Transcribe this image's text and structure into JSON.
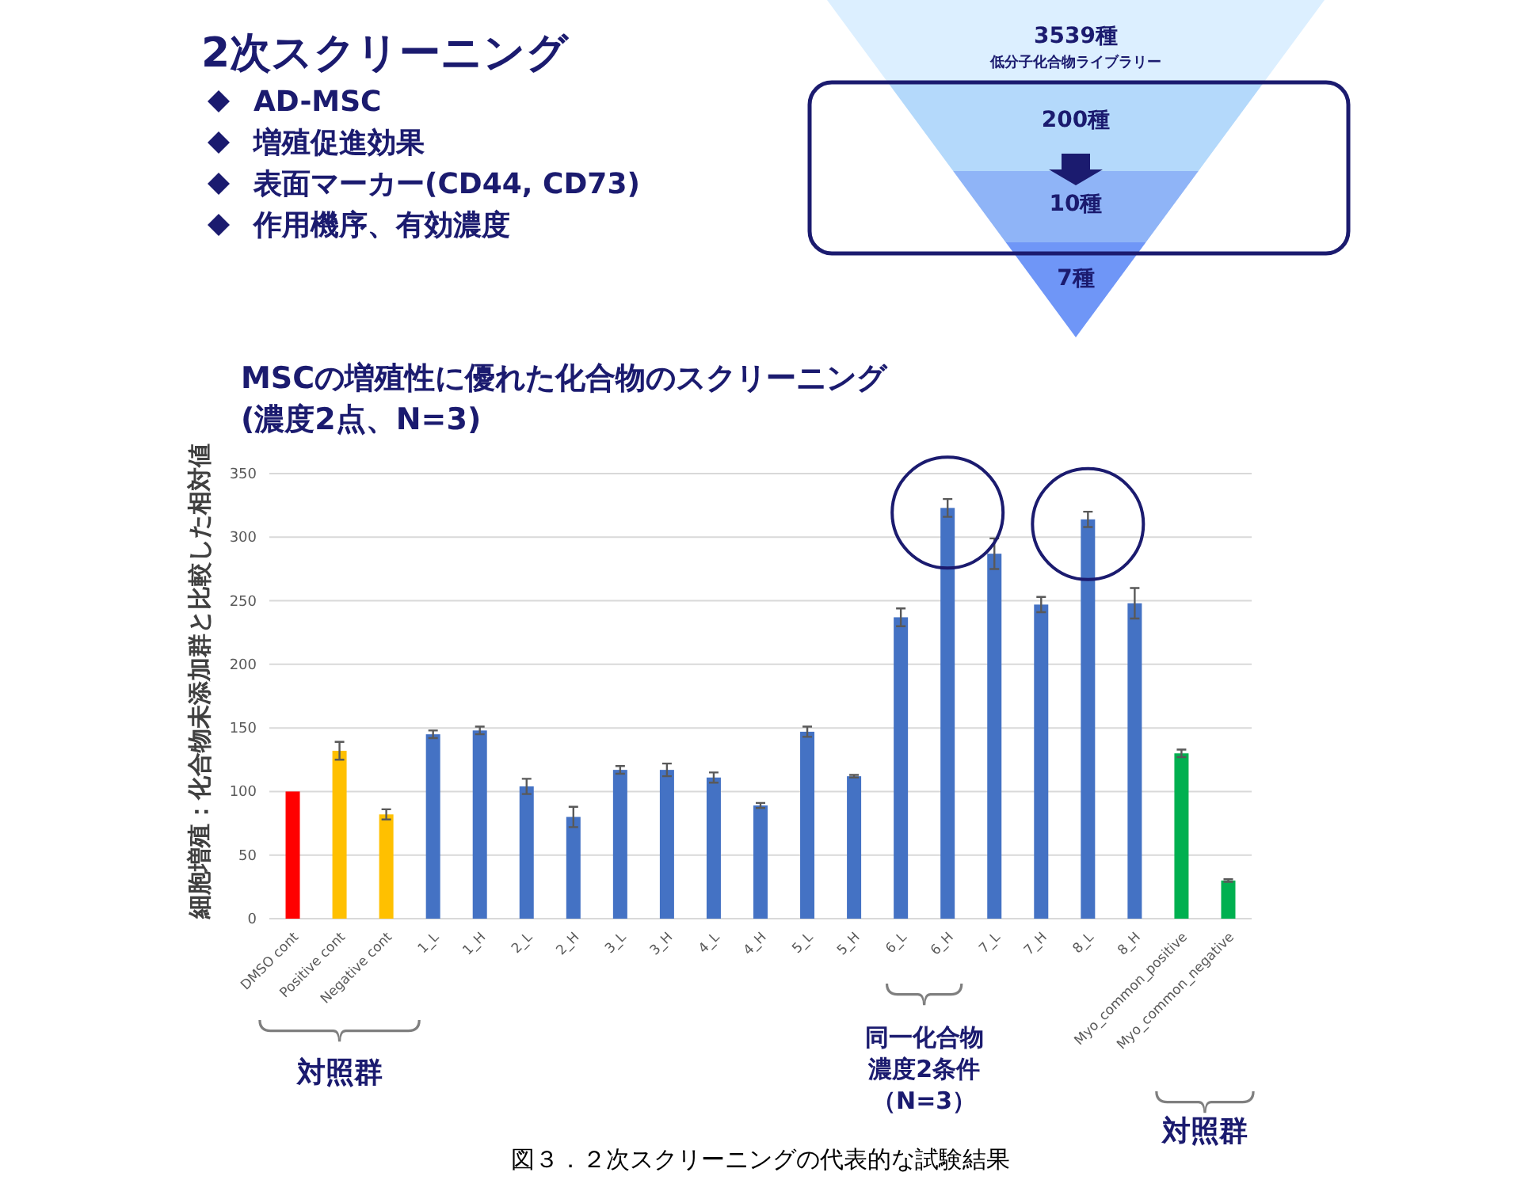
{
  "chart_data": [
    {
      "type": "other",
      "title": "2次スクリーニング",
      "annotations": [
        "AD-MSC",
        "増殖促進効果",
        "表面マーカー(CD44, CD73)",
        "作用機序、有効濃度"
      ]
    },
    {
      "type": "other",
      "categories": [
        "低分子化合物ライブラリー",
        null,
        null,
        null
      ],
      "values": [
        3539,
        200,
        10,
        7
      ],
      "value_labels": [
        "3539種",
        "200種",
        "10種",
        "7種"
      ],
      "colors": [
        "#dcefff",
        "#b4d9fb",
        "#8fb4f7",
        "#6f96f7"
      ]
    },
    {
      "type": "bar",
      "title": "MSCの増殖性に優れた化合物のスクリーニング\n(濃度2点、N=3)",
      "ylabel": "細胞増殖：化合物未添加群と比較した相対値",
      "categories": [
        "DMSO cont",
        "Positive cont",
        "Negative cont",
        "1_L",
        "1_H",
        "2_L",
        "2_H",
        "3_L",
        "3_H",
        "4_L",
        "4_H",
        "5_L",
        "5_H",
        "6_L",
        "6_H",
        "7_L",
        "7_H",
        "8_L",
        "8_H",
        "Myo_common_positive",
        "Myo_common_negative"
      ],
      "values": [
        100,
        132,
        82,
        145,
        148,
        104,
        80,
        117,
        117,
        111,
        89,
        147,
        112,
        237,
        323,
        287,
        247,
        314,
        248,
        130,
        30
      ],
      "errors": [
        null,
        7,
        4,
        3,
        3,
        6,
        8,
        3,
        5,
        4,
        2,
        4,
        1,
        7,
        7,
        12,
        6,
        6,
        12,
        3,
        1
      ],
      "colors": [
        "#ff0000",
        "#ffc000",
        "#ffc000",
        "#4472c4",
        "#4472c4",
        "#4472c4",
        "#4472c4",
        "#4472c4",
        "#4472c4",
        "#4472c4",
        "#4472c4",
        "#4472c4",
        "#4472c4",
        "#4472c4",
        "#4472c4",
        "#4472c4",
        "#4472c4",
        "#4472c4",
        "#4472c4",
        "#00b050",
        "#00b050"
      ],
      "ylim": [
        0,
        350
      ],
      "yticks": [
        0,
        50,
        100,
        150,
        200,
        250,
        300,
        350
      ],
      "grid": "y",
      "annotations": [
        "対照群",
        "同一化合物",
        "濃度2条件",
        "（N=3）",
        "対照群",
        "図３．２次スクリーニングの代表的な試験結果"
      ]
    }
  ]
}
